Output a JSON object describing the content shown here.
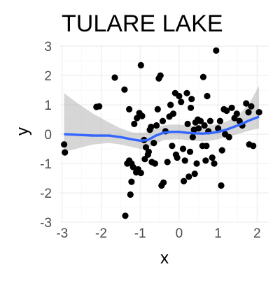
{
  "chart_data": {
    "type": "scatter",
    "title": "TULARE LAKE",
    "xlabel": "x",
    "ylabel": "y",
    "xlim": [
      -3.05,
      2.3
    ],
    "ylim": [
      -3.0,
      3.05
    ],
    "x_ticks": [
      -3,
      -2,
      -1,
      0,
      1,
      2
    ],
    "y_ticks": [
      -3,
      -2,
      -1,
      0,
      1,
      2,
      3
    ],
    "grid": true,
    "colors": {
      "points": "#000000",
      "smooth_line": "#3366ff",
      "ribbon": "#999999",
      "grid": "#ebebeb",
      "background": "#ffffff"
    },
    "points": [
      [
        -2.95,
        -0.35
      ],
      [
        -2.93,
        -0.62
      ],
      [
        -2.12,
        0.93
      ],
      [
        -2.05,
        0.95
      ],
      [
        -1.65,
        1.93
      ],
      [
        -1.4,
        1.52
      ],
      [
        -1.38,
        -2.78
      ],
      [
        -1.28,
        0.85
      ],
      [
        -1.25,
        -2.06
      ],
      [
        -1.22,
        -1.62
      ],
      [
        -1.33,
        -1.0
      ],
      [
        -1.28,
        -0.9
      ],
      [
        -1.22,
        -1.0
      ],
      [
        -1.18,
        -1.12
      ],
      [
        -1.1,
        -1.3
      ],
      [
        -1.05,
        -1.2
      ],
      [
        -0.98,
        -1.32
      ],
      [
        -1.15,
        0.35
      ],
      [
        -1.08,
        0.55
      ],
      [
        -1.02,
        0.72
      ],
      [
        -0.95,
        0.62
      ],
      [
        -0.98,
        2.35
      ],
      [
        -0.9,
        -0.2
      ],
      [
        -0.85,
        -0.45
      ],
      [
        -0.8,
        -0.7
      ],
      [
        -0.88,
        -0.85
      ],
      [
        -0.78,
        -0.6
      ],
      [
        -0.75,
        0.15
      ],
      [
        -0.72,
        0.25
      ],
      [
        -0.7,
        -0.95
      ],
      [
        -0.65,
        -0.3
      ],
      [
        -0.62,
        -1.0
      ],
      [
        -0.58,
        0.3
      ],
      [
        -0.55,
        0.85
      ],
      [
        -0.52,
        1.9
      ],
      [
        -0.48,
        2.0
      ],
      [
        -0.45,
        -1.75
      ],
      [
        -0.4,
        -1.65
      ],
      [
        -0.42,
        0.45
      ],
      [
        -0.35,
        0.1
      ],
      [
        -0.3,
        -0.95
      ],
      [
        -0.25,
        0.6
      ],
      [
        -0.22,
        1.0
      ],
      [
        -0.18,
        -0.4
      ],
      [
        -0.15,
        0.7
      ],
      [
        -0.1,
        1.4
      ],
      [
        -0.08,
        -0.7
      ],
      [
        -0.05,
        -0.8
      ],
      [
        0.0,
        1.3
      ],
      [
        0.05,
        1.1
      ],
      [
        0.1,
        -0.5
      ],
      [
        0.12,
        -1.6
      ],
      [
        0.15,
        -0.9
      ],
      [
        0.2,
        1.4
      ],
      [
        0.22,
        0.35
      ],
      [
        0.25,
        -1.45
      ],
      [
        0.28,
        -0.6
      ],
      [
        0.3,
        0.9
      ],
      [
        0.32,
        1.2
      ],
      [
        0.35,
        -0.1
      ],
      [
        0.38,
        0.15
      ],
      [
        0.4,
        -1.35
      ],
      [
        0.42,
        0.4
      ],
      [
        0.45,
        -1.0
      ],
      [
        0.48,
        0.5
      ],
      [
        0.5,
        0.2
      ],
      [
        0.55,
        0.45
      ],
      [
        0.6,
        -0.4
      ],
      [
        0.62,
        1.95
      ],
      [
        0.65,
        0.3
      ],
      [
        0.68,
        -0.9
      ],
      [
        0.7,
        -0.4
      ],
      [
        0.72,
        1.3
      ],
      [
        0.75,
        0.1
      ],
      [
        0.8,
        0.45
      ],
      [
        0.85,
        -0.8
      ],
      [
        0.9,
        -1.0
      ],
      [
        0.95,
        2.85
      ],
      [
        1.0,
        0.2
      ],
      [
        1.05,
        0.45
      ],
      [
        1.08,
        -1.75
      ],
      [
        1.1,
        -0.55
      ],
      [
        1.15,
        0.85
      ],
      [
        1.18,
        0.0
      ],
      [
        1.22,
        0.8
      ],
      [
        1.28,
        -0.1
      ],
      [
        1.35,
        0.9
      ],
      [
        1.42,
        0.55
      ],
      [
        1.48,
        0.7
      ],
      [
        1.55,
        0.45
      ],
      [
        1.62,
        0.3
      ],
      [
        1.72,
        1.05
      ],
      [
        1.78,
        0.75
      ],
      [
        1.8,
        -0.35
      ],
      [
        1.85,
        0.95
      ],
      [
        1.9,
        -0.4
      ],
      [
        2.05,
        0.75
      ]
    ],
    "smooth": {
      "x": [
        -2.95,
        -2.6,
        -2.2,
        -1.8,
        -1.5,
        -1.2,
        -1.0,
        -0.8,
        -0.6,
        -0.4,
        -0.2,
        0.0,
        0.2,
        0.4,
        0.6,
        0.8,
        1.0,
        1.2,
        1.4,
        1.6,
        1.8,
        2.05
      ],
      "y": [
        0.0,
        -0.02,
        -0.05,
        -0.05,
        -0.1,
        -0.18,
        -0.22,
        -0.2,
        -0.05,
        0.05,
        0.08,
        0.08,
        0.05,
        0.03,
        0.02,
        0.04,
        0.08,
        0.15,
        0.25,
        0.35,
        0.47,
        0.6
      ],
      "ci_low": [
        -0.6,
        -0.48,
        -0.35,
        -0.3,
        -0.35,
        -0.44,
        -0.5,
        -0.48,
        -0.32,
        -0.2,
        -0.18,
        -0.17,
        -0.2,
        -0.22,
        -0.25,
        -0.22,
        -0.17,
        -0.1,
        -0.03,
        0.04,
        0.12,
        0.2
      ],
      "ci_high": [
        1.4,
        1.05,
        0.7,
        0.4,
        0.2,
        0.06,
        0.05,
        0.07,
        0.22,
        0.3,
        0.33,
        0.33,
        0.3,
        0.28,
        0.27,
        0.3,
        0.35,
        0.42,
        0.55,
        0.75,
        1.05,
        1.65
      ]
    }
  }
}
